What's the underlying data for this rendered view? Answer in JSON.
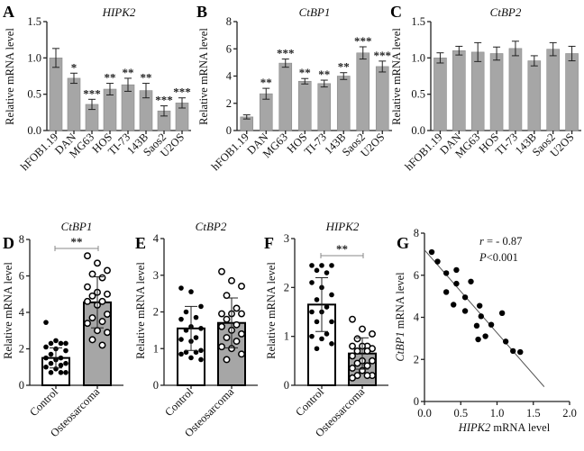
{
  "chart_data": [
    {
      "panel": "A",
      "type": "bar",
      "title": "HIPK2",
      "ylabel": "Relative mRNA level",
      "categories": [
        "hFOB1.19",
        "DAN",
        "MG63",
        "HOS",
        "TI-73",
        "143B",
        "Saos2",
        "U2OS"
      ],
      "values": [
        1.0,
        0.72,
        0.36,
        0.57,
        0.63,
        0.55,
        0.27,
        0.38
      ],
      "errors": [
        0.13,
        0.07,
        0.07,
        0.08,
        0.09,
        0.1,
        0.07,
        0.07
      ],
      "significance": [
        "",
        "*",
        "***",
        "**",
        "**",
        "**",
        "***",
        "***"
      ],
      "ylim": [
        0,
        1.5
      ],
      "yticks": [
        "0.0",
        "0.5",
        "1.0",
        "1.5"
      ],
      "bar_color": "#a6a6a6"
    },
    {
      "panel": "B",
      "type": "bar",
      "title": "CtBP1",
      "ylabel": "Relative mRNA level",
      "categories": [
        "hFOB1.19",
        "DAN",
        "MG63",
        "HOS",
        "TI-73",
        "143B",
        "Saos2",
        "U2OS"
      ],
      "values": [
        1.0,
        2.7,
        4.95,
        3.62,
        3.45,
        4.0,
        5.7,
        4.7
      ],
      "errors": [
        0.15,
        0.4,
        0.3,
        0.2,
        0.25,
        0.25,
        0.45,
        0.4
      ],
      "significance": [
        "",
        "**",
        "***",
        "**",
        "**",
        "**",
        "***",
        "***"
      ],
      "ylim": [
        0,
        8
      ],
      "yticks": [
        "0",
        "2",
        "4",
        "6",
        "8"
      ],
      "bar_color": "#a6a6a6"
    },
    {
      "panel": "C",
      "type": "bar",
      "title": "CtBP2",
      "ylabel": "Relative mRNA level",
      "categories": [
        "hFOB1.19",
        "DAN",
        "MG63",
        "HOS",
        "TI-73",
        "143B",
        "Saos2",
        "U2OS"
      ],
      "values": [
        1.0,
        1.1,
        1.08,
        1.06,
        1.13,
        0.96,
        1.12,
        1.06
      ],
      "errors": [
        0.07,
        0.06,
        0.13,
        0.09,
        0.1,
        0.07,
        0.09,
        0.1
      ],
      "significance": [
        "",
        "",
        "",
        "",
        "",
        "",
        "",
        ""
      ],
      "ylim": [
        0,
        1.5
      ],
      "yticks": [
        "0.0",
        "0.5",
        "1.0",
        "1.5"
      ],
      "bar_color": "#a6a6a6"
    },
    {
      "panel": "D",
      "type": "bar",
      "title": "CtBP1",
      "ylabel": "Relative mRNA level",
      "categories": [
        "Control",
        "Osteosarcoma"
      ],
      "means": [
        1.5,
        4.55
      ],
      "sd": [
        0.55,
        1.4
      ],
      "points": [
        [
          3.45,
          2.45,
          2.3,
          2.3,
          2.3,
          2.1,
          2.0,
          1.9,
          1.7,
          1.5,
          1.5,
          1.4,
          1.2,
          1.2,
          1.1,
          1.0,
          0.9,
          0.7,
          0.7,
          0.7
        ],
        [
          7.1,
          6.7,
          6.3,
          6.1,
          5.9,
          5.4,
          5.1,
          5.0,
          4.9,
          4.6,
          4.6,
          4.4,
          3.9,
          3.7,
          3.5,
          3.4,
          3.0,
          2.9,
          2.5,
          2.2
        ]
      ],
      "significance": "**",
      "ylim": [
        0,
        8
      ],
      "yticks": [
        "0",
        "2",
        "4",
        "6",
        "8"
      ],
      "bar_colors": [
        "#ffffff",
        "#a6a6a6"
      ]
    },
    {
      "panel": "E",
      "type": "bar",
      "title": "CtBP2",
      "ylabel": "Relative mRNA level",
      "categories": [
        "Control",
        "Osteosarcoma"
      ],
      "means": [
        1.55,
        1.7
      ],
      "sd": [
        0.6,
        0.68
      ],
      "points": [
        [
          2.65,
          2.55,
          2.15,
          2.0,
          1.85,
          1.8,
          1.6,
          1.55,
          1.5,
          1.3,
          1.25,
          1.2,
          0.95,
          0.9,
          0.9,
          0.85,
          0.75,
          0.7
        ],
        [
          3.1,
          2.85,
          2.7,
          2.45,
          2.1,
          1.95,
          1.95,
          1.95,
          1.8,
          1.65,
          1.6,
          1.5,
          1.4,
          1.3,
          1.2,
          1.05,
          1.0,
          0.85,
          0.7
        ]
      ],
      "significance": "",
      "ylim": [
        0,
        4
      ],
      "yticks": [
        "0",
        "1",
        "2",
        "3",
        "4"
      ],
      "bar_colors": [
        "#ffffff",
        "#a6a6a6"
      ]
    },
    {
      "panel": "F",
      "type": "bar",
      "title": "HIPK2",
      "ylabel": "Relative mRNA level",
      "categories": [
        "Control",
        "Osteosarcoma"
      ],
      "means": [
        1.65,
        0.65
      ],
      "sd": [
        0.55,
        0.32
      ],
      "points": [
        [
          2.45,
          2.45,
          2.45,
          2.35,
          2.3,
          2.1,
          2.0,
          1.85,
          1.75,
          1.6,
          1.5,
          1.5,
          1.3,
          1.3,
          1.05,
          1.0,
          0.95,
          0.85,
          0.75
        ],
        [
          1.35,
          1.15,
          1.05,
          0.95,
          0.8,
          0.8,
          0.8,
          0.75,
          0.7,
          0.7,
          0.6,
          0.5,
          0.5,
          0.45,
          0.4,
          0.35,
          0.3,
          0.2,
          0.2,
          0.2,
          0.15
        ]
      ],
      "significance": "**",
      "ylim": [
        0,
        3
      ],
      "yticks": [
        "0",
        "1",
        "2",
        "3"
      ],
      "bar_colors": [
        "#ffffff",
        "#a6a6a6"
      ]
    },
    {
      "panel": "G",
      "type": "scatter",
      "xlabel_italic": "HIPK2",
      "xlabel_rest": " mRNA level",
      "ylabel_italic": "CtBP1",
      "ylabel_rest": " mRNA level",
      "x": [
        0.1,
        0.18,
        0.3,
        0.44,
        0.3,
        0.44,
        0.64,
        0.56,
        0.4,
        0.56,
        0.76,
        0.78,
        0.72,
        0.92,
        1.07,
        0.74,
        0.84,
        1.12,
        1.22,
        1.32
      ],
      "y": [
        7.1,
        6.65,
        6.1,
        6.25,
        5.2,
        5.6,
        5.7,
        4.95,
        4.6,
        4.3,
        4.55,
        4.05,
        3.6,
        3.65,
        4.2,
        2.95,
        3.1,
        2.85,
        2.4,
        2.35
      ],
      "fit_line": {
        "x": [
          0.0,
          1.65
        ],
        "y": [
          7.2,
          0.7
        ]
      },
      "xlim": [
        0,
        2
      ],
      "ylim": [
        0,
        8
      ],
      "xticks": [
        "0.0",
        "0.5",
        "1.0",
        "1.5",
        "2.0"
      ],
      "yticks": [
        "0",
        "2",
        "4",
        "6",
        "8"
      ],
      "annotation_r_symbol": "r",
      "annotation_r_value": " = - 0.87",
      "annotation_p_symbol": "P",
      "annotation_p_value": "<0.001"
    }
  ]
}
